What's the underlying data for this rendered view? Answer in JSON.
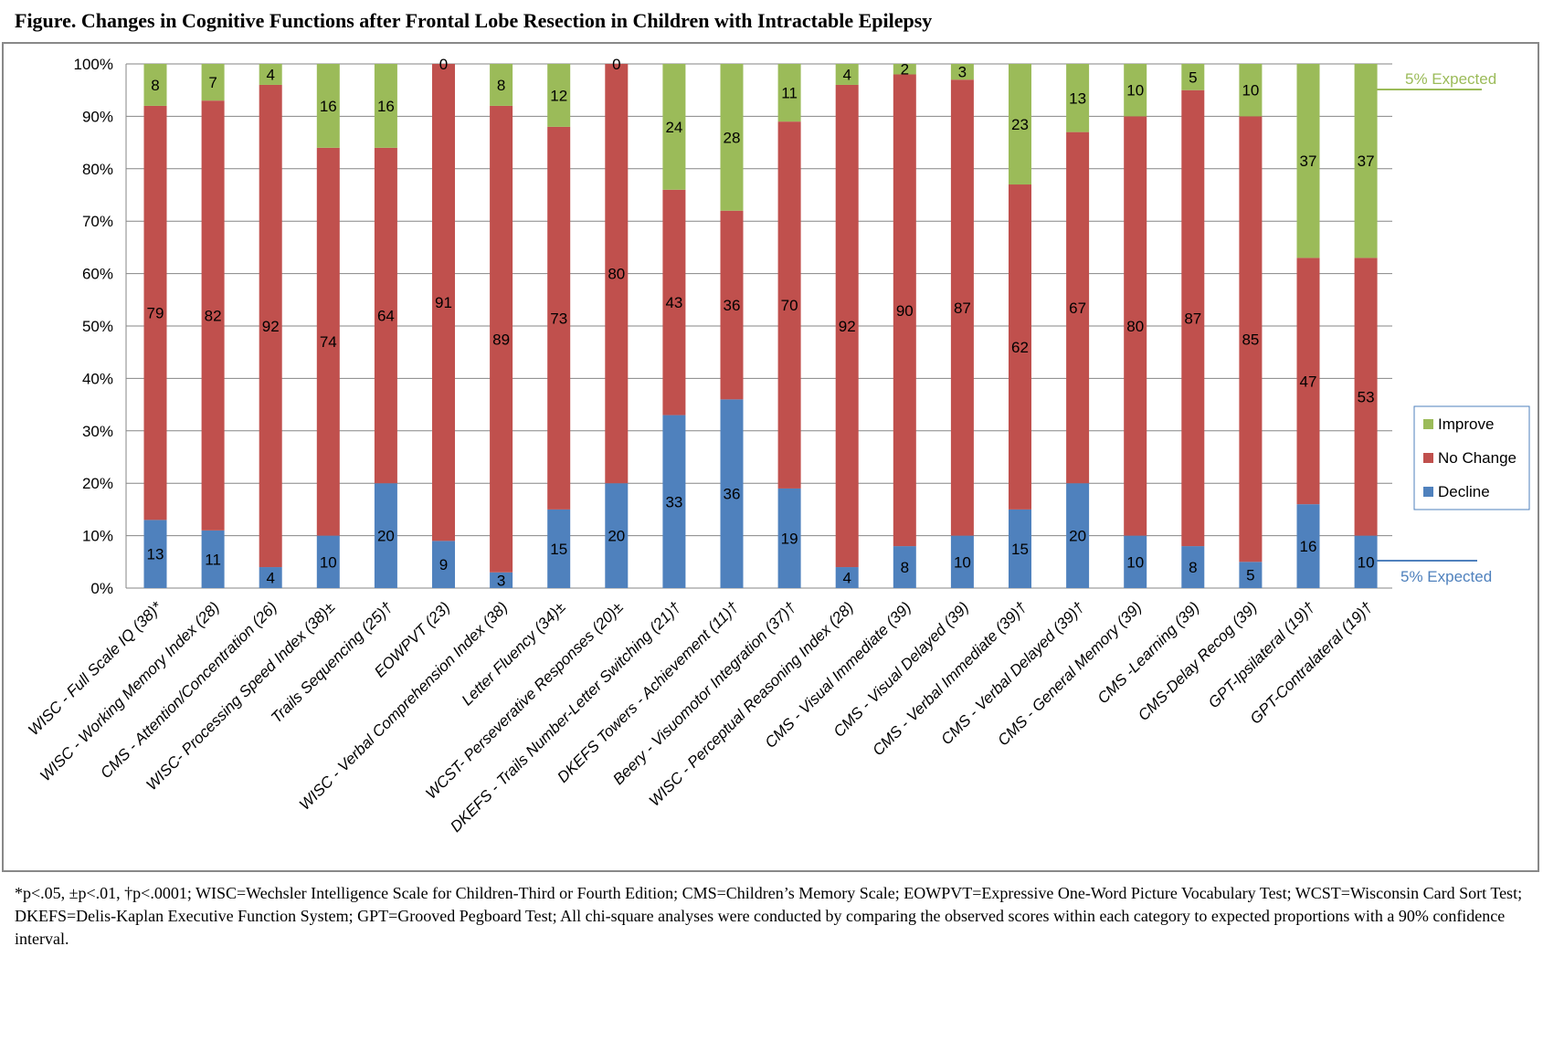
{
  "title": "Figure. Changes in Cognitive Functions after Frontal Lobe Resection in Children with Intractable Epilepsy",
  "footnote": "*p<.05, ±p<.01, †p<.0001; WISC=Wechsler Intelligence Scale for Children-Third or Fourth Edition; CMS=Children’s Memory Scale; EOWPVT=Expressive One-Word Picture Vocabulary Test; WCST=Wisconsin Card Sort Test; DKEFS=Delis-Kaplan Executive Function System; GPT=Grooved Pegboard Test; All chi-square analyses were conducted by comparing the observed scores within each category to expected proportions with a 90% confidence interval.",
  "chart_data": {
    "type": "bar",
    "stacked": true,
    "title": "Changes in Cognitive Functions after Frontal Lobe Resection in Children with Intractable Epilepsy",
    "xlabel": "",
    "ylabel": "",
    "ylim": [
      0,
      100
    ],
    "yticks": [
      "0%",
      "10%",
      "20%",
      "30%",
      "40%",
      "50%",
      "60%",
      "70%",
      "80%",
      "90%",
      "100%"
    ],
    "grid": true,
    "legend_position": "right",
    "categories": [
      "WISC - Full Scale IQ (38)*",
      "WISC - Working Memory Index (28)",
      "CMS - Attention/Concentration (26)",
      "WISC- Processing Speed Index (38)±",
      "Trails Sequencing (25)†",
      "EOWPVT (23)",
      "WISC - Verbal Comprehension Index (38)",
      "Letter Fluency (34)±",
      "WCST- Perseverative Responses (20)±",
      "DKEFS - Trails Number-Letter Switching (21)†",
      "DKEFS Towers - Achievement (11)†",
      "Beery - Visuomotor Integration (37)†",
      "WISC - Perceptual Reasoning Index (28)",
      "CMS - Visual Immediate (39)",
      "CMS - Visual Delayed (39)",
      "CMS - Verbal Immediate (39)†",
      "CMS - Verbal Delayed (39)†",
      "CMS - General Memory (39)",
      "CMS -Learning (39)",
      "CMS-Delay Recog (39)",
      "GPT-Ipsilateral (19)†",
      "GPT-Contralateral (19)†"
    ],
    "series": [
      {
        "name": "Decline",
        "color": "#4f81bd",
        "values": [
          13,
          11,
          4,
          10,
          20,
          9,
          3,
          15,
          20,
          33,
          36,
          19,
          4,
          8,
          10,
          15,
          20,
          10,
          8,
          5,
          16,
          10
        ]
      },
      {
        "name": "No Change",
        "color": "#c0504d",
        "values": [
          79,
          82,
          92,
          74,
          64,
          91,
          89,
          73,
          80,
          43,
          36,
          70,
          92,
          90,
          87,
          62,
          67,
          80,
          87,
          85,
          47,
          53
        ]
      },
      {
        "name": "Improve",
        "color": "#9bbb59",
        "values": [
          8,
          7,
          4,
          16,
          16,
          0,
          8,
          12,
          0,
          24,
          28,
          11,
          4,
          2,
          3,
          23,
          13,
          10,
          5,
          10,
          37,
          37
        ]
      }
    ],
    "annotations": [
      {
        "text": "5% Expected",
        "color": "#9bbb59",
        "level": 95
      },
      {
        "text": "5% Expected",
        "color": "#4f81bd",
        "level": 5
      }
    ]
  }
}
